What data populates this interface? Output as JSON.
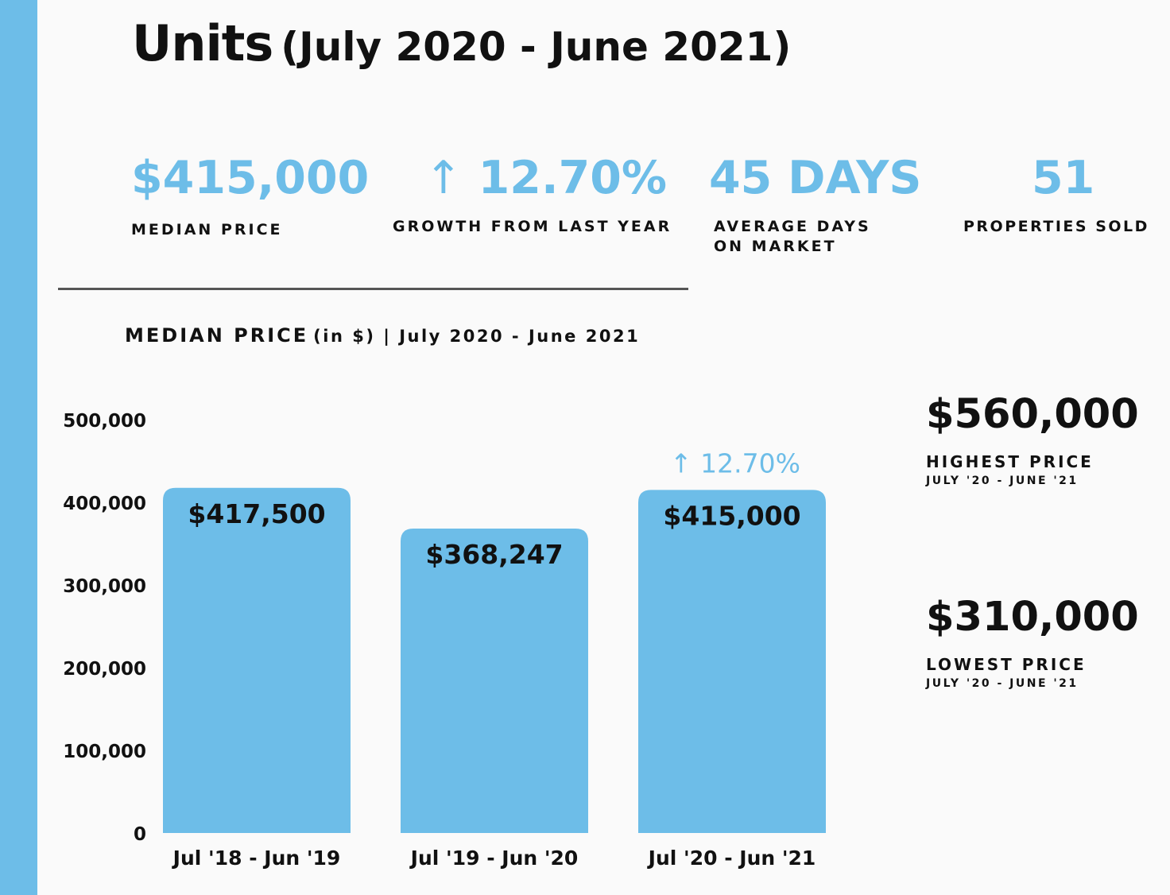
{
  "title": {
    "main": "Units",
    "sub": "(July 2020 - June 2021)"
  },
  "stats": [
    {
      "value": "$415,000",
      "label": "MEDIAN PRICE"
    },
    {
      "arrow": "↑",
      "value": "12.70%",
      "label": "GROWTH FROM LAST YEAR"
    },
    {
      "value": "45 DAYS",
      "label": "AVERAGE DAYS ON MARKET"
    },
    {
      "value": "51",
      "label": "PROPERTIES SOLD"
    }
  ],
  "chart_title": {
    "main": "MEDIAN PRICE",
    "sub": "(in $) | July 2020 - June 2021"
  },
  "side": {
    "highest": {
      "value": "$560,000",
      "label": "HIGHEST PRICE",
      "sub": "JULY '20 - JUNE '21"
    },
    "lowest": {
      "value": "$310,000",
      "label": "LOWEST PRICE",
      "sub": "JULY '20 - JUNE '21"
    }
  },
  "colors": {
    "accent": "#6dbde8",
    "text": "#111111",
    "background": "#fafafa"
  },
  "chart_data": {
    "type": "bar",
    "title": "MEDIAN PRICE (in $) | July 2020 - June 2021",
    "xlabel": "",
    "ylabel": "",
    "categories": [
      "Jul '18 - Jun '19",
      "Jul '19 - Jun '20",
      "Jul '20 - Jun '21"
    ],
    "values": [
      417500,
      368247,
      415000
    ],
    "data_labels": [
      "$417,500",
      "$368,247",
      "$415,000"
    ],
    "ylim": [
      0,
      500000
    ],
    "yticks": [
      0,
      100000,
      200000,
      300000,
      400000,
      500000
    ],
    "ytick_labels": [
      "0",
      "100,000",
      "200,000",
      "300,000",
      "400,000",
      "500,000"
    ],
    "annotation": {
      "category_index": 2,
      "arrow": "↑",
      "text": "12.70%"
    },
    "grid": false,
    "legend": "none"
  }
}
